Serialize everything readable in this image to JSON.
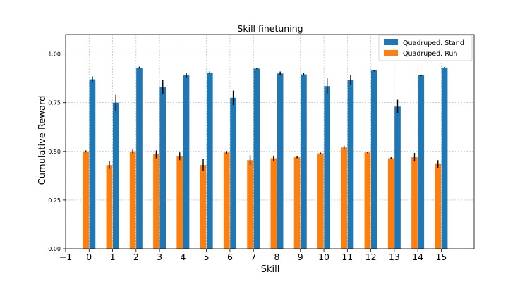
{
  "chart_data": {
    "type": "bar",
    "title": "Skill finetuning",
    "xlabel": "Skill",
    "ylabel": "Cumulative Reward",
    "xlim": [
      -1,
      16.4
    ],
    "ylim": [
      0,
      1.1
    ],
    "x_ticks": [
      -1,
      0,
      1,
      2,
      3,
      4,
      5,
      6,
      7,
      8,
      9,
      10,
      11,
      12,
      13,
      14,
      15
    ],
    "x_tick_labels": [
      "−1",
      "0",
      "1",
      "2",
      "3",
      "4",
      "5",
      "6",
      "7",
      "8",
      "9",
      "10",
      "11",
      "12",
      "13",
      "14",
      "15"
    ],
    "y_ticks": [
      0,
      0.25,
      0.5,
      0.75,
      1.0
    ],
    "y_tick_labels": [
      "0.00",
      "0.25",
      "0.50",
      "0.75",
      "1.00"
    ],
    "grid": true,
    "legend_position": "top-right",
    "categories": [
      0,
      1,
      2,
      3,
      4,
      5,
      6,
      7,
      8,
      9,
      10,
      11,
      12,
      13,
      14,
      15
    ],
    "series": [
      {
        "name": "Quadruped. Stand",
        "color": "#1f77b4",
        "values": [
          0.87,
          0.75,
          0.93,
          0.83,
          0.89,
          0.905,
          0.775,
          0.925,
          0.9,
          0.895,
          0.835,
          0.865,
          0.915,
          0.73,
          0.89,
          0.93
        ],
        "errors": [
          0.015,
          0.04,
          0.005,
          0.035,
          0.013,
          0.006,
          0.037,
          0.003,
          0.01,
          0.006,
          0.04,
          0.025,
          0.004,
          0.035,
          0.004,
          0.003
        ]
      },
      {
        "name": "Quadruped. Run",
        "color": "#ff7f0e",
        "values": [
          0.5,
          0.43,
          0.5,
          0.485,
          0.475,
          0.43,
          0.495,
          0.455,
          0.465,
          0.47,
          0.49,
          0.52,
          0.495,
          0.465,
          0.47,
          0.435
        ],
        "errors": [
          0.005,
          0.02,
          0.01,
          0.02,
          0.02,
          0.03,
          0.007,
          0.025,
          0.013,
          0.005,
          0.004,
          0.01,
          0.004,
          0.005,
          0.022,
          0.02
        ]
      }
    ]
  }
}
